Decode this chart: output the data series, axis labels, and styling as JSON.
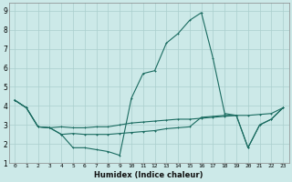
{
  "xlabel": "Humidex (Indice chaleur)",
  "bg_color": "#cce9e8",
  "grid_color": "#aacfcd",
  "line_color": "#1a6b60",
  "xlim": [
    -0.5,
    23.5
  ],
  "ylim": [
    1,
    9.4
  ],
  "xticks": [
    0,
    1,
    2,
    3,
    4,
    5,
    6,
    7,
    8,
    9,
    10,
    11,
    12,
    13,
    14,
    15,
    16,
    17,
    18,
    19,
    20,
    21,
    22,
    23
  ],
  "yticks": [
    1,
    2,
    3,
    4,
    5,
    6,
    7,
    8,
    9
  ],
  "line1": [
    [
      0,
      4.3
    ],
    [
      1,
      3.9
    ],
    [
      2,
      2.9
    ],
    [
      3,
      2.85
    ],
    [
      4,
      2.5
    ],
    [
      5,
      1.8
    ],
    [
      6,
      1.8
    ],
    [
      7,
      1.7
    ],
    [
      8,
      1.6
    ],
    [
      9,
      1.4
    ],
    [
      10,
      4.4
    ],
    [
      11,
      5.7
    ],
    [
      12,
      5.85
    ],
    [
      13,
      7.3
    ],
    [
      14,
      7.8
    ],
    [
      15,
      8.5
    ],
    [
      16,
      8.9
    ],
    [
      17,
      6.5
    ],
    [
      18,
      3.6
    ],
    [
      19,
      3.5
    ],
    [
      20,
      1.8
    ],
    [
      21,
      3.0
    ],
    [
      22,
      3.3
    ],
    [
      23,
      3.9
    ]
  ],
  "line2": [
    [
      0,
      4.3
    ],
    [
      1,
      3.9
    ],
    [
      2,
      2.9
    ],
    [
      3,
      2.85
    ],
    [
      4,
      2.9
    ],
    [
      5,
      2.85
    ],
    [
      6,
      2.85
    ],
    [
      7,
      2.9
    ],
    [
      8,
      2.9
    ],
    [
      9,
      3.0
    ],
    [
      10,
      3.1
    ],
    [
      11,
      3.15
    ],
    [
      12,
      3.2
    ],
    [
      13,
      3.25
    ],
    [
      14,
      3.3
    ],
    [
      15,
      3.3
    ],
    [
      16,
      3.35
    ],
    [
      17,
      3.4
    ],
    [
      18,
      3.45
    ],
    [
      19,
      3.5
    ],
    [
      20,
      3.5
    ],
    [
      21,
      3.55
    ],
    [
      22,
      3.6
    ],
    [
      23,
      3.9
    ]
  ],
  "line3": [
    [
      0,
      4.3
    ],
    [
      1,
      3.9
    ],
    [
      2,
      2.9
    ],
    [
      3,
      2.85
    ],
    [
      4,
      2.5
    ],
    [
      5,
      2.55
    ],
    [
      6,
      2.5
    ],
    [
      7,
      2.5
    ],
    [
      8,
      2.5
    ],
    [
      9,
      2.55
    ],
    [
      10,
      2.6
    ],
    [
      11,
      2.65
    ],
    [
      12,
      2.7
    ],
    [
      13,
      2.8
    ],
    [
      14,
      2.85
    ],
    [
      15,
      2.9
    ],
    [
      16,
      3.4
    ],
    [
      17,
      3.45
    ],
    [
      18,
      3.5
    ],
    [
      19,
      3.5
    ],
    [
      20,
      1.8
    ],
    [
      21,
      3.0
    ],
    [
      22,
      3.3
    ],
    [
      23,
      3.9
    ]
  ]
}
